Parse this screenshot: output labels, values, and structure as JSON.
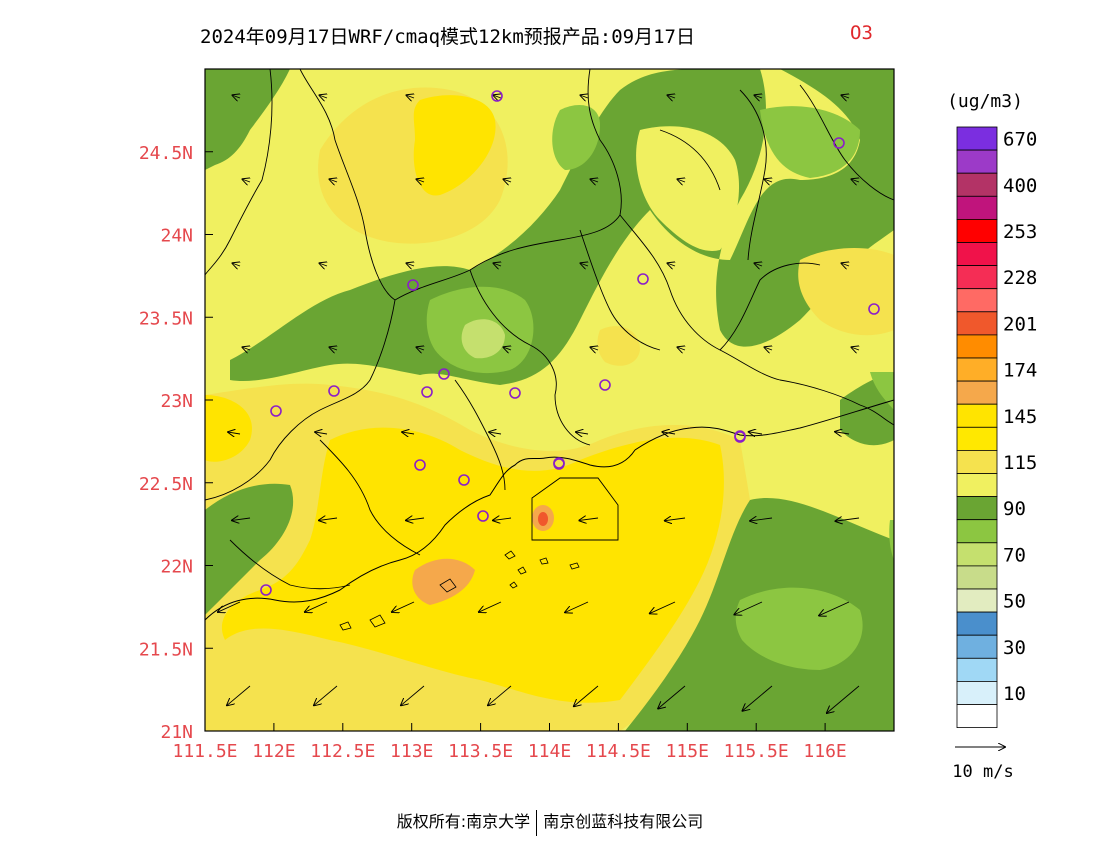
{
  "title": "2024年09月17日WRF/cmaq模式12km预报产品:09月17日",
  "species": "O3",
  "footer": {
    "copyright": "版权所有:南京大学",
    "company": "南京创蓝科技有限公司"
  },
  "map": {
    "lat_labels": [
      "24.5N",
      "24N",
      "23.5N",
      "23N",
      "22.5N",
      "22N",
      "21.5N",
      "21N"
    ],
    "lon_labels": [
      "111.5E",
      "112E",
      "112.5E",
      "113E",
      "113.5E",
      "114E",
      "114.5E",
      "115E",
      "115.5E",
      "116E"
    ],
    "lat_range": [
      21,
      25
    ],
    "lon_range": [
      111.5,
      116.5
    ],
    "label_color": "#e5484d"
  },
  "legend": {
    "unit": "(ug/m3)",
    "levels": [
      {
        "label": "670",
        "color": "#7b2ee0"
      },
      {
        "label": "",
        "color": "#9c3ac8"
      },
      {
        "label": "400",
        "color": "#b33366"
      },
      {
        "label": "",
        "color": "#c0147c"
      },
      {
        "label": "253",
        "color": "#ff0000"
      },
      {
        "label": "",
        "color": "#f0124a"
      },
      {
        "label": "228",
        "color": "#f52d55"
      },
      {
        "label": "",
        "color": "#ff6a64"
      },
      {
        "label": "201",
        "color": "#f0582c"
      },
      {
        "label": "",
        "color": "#ff8c00"
      },
      {
        "label": "174",
        "color": "#ffae27"
      },
      {
        "label": "",
        "color": "#f5a84b"
      },
      {
        "label": "145",
        "color": "#ffe400"
      },
      {
        "label": "",
        "color": "#ffe800"
      },
      {
        "label": "115",
        "color": "#f5e24e"
      },
      {
        "label": "",
        "color": "#f0f060"
      },
      {
        "label": "90",
        "color": "#6aa533"
      },
      {
        "label": "",
        "color": "#8cc641"
      },
      {
        "label": "70",
        "color": "#c5e06e"
      },
      {
        "label": "",
        "color": "#c8dc8a"
      },
      {
        "label": "50",
        "color": "#e2ecc0"
      },
      {
        "label": "",
        "color": "#4a8fcc"
      },
      {
        "label": "30",
        "color": "#6fb0e0"
      },
      {
        "label": "",
        "color": "#a0d8f5"
      },
      {
        "label": "10",
        "color": "#d8f0fa"
      },
      {
        "label": "",
        "color": "#ffffff"
      }
    ]
  },
  "wind_reference": {
    "label": "10 m/s"
  },
  "colors": {
    "green_dark": "#6aa533",
    "green_mid": "#8cc641",
    "green_light": "#c5e06e",
    "yellow_pale": "#f0f060",
    "yellow_mid": "#f5e24e",
    "yellow_bright": "#ffe400",
    "orange_light": "#f5a84b",
    "orange": "#f0582c",
    "station_circle": "#8b1ec8"
  },
  "stations_count": 19
}
